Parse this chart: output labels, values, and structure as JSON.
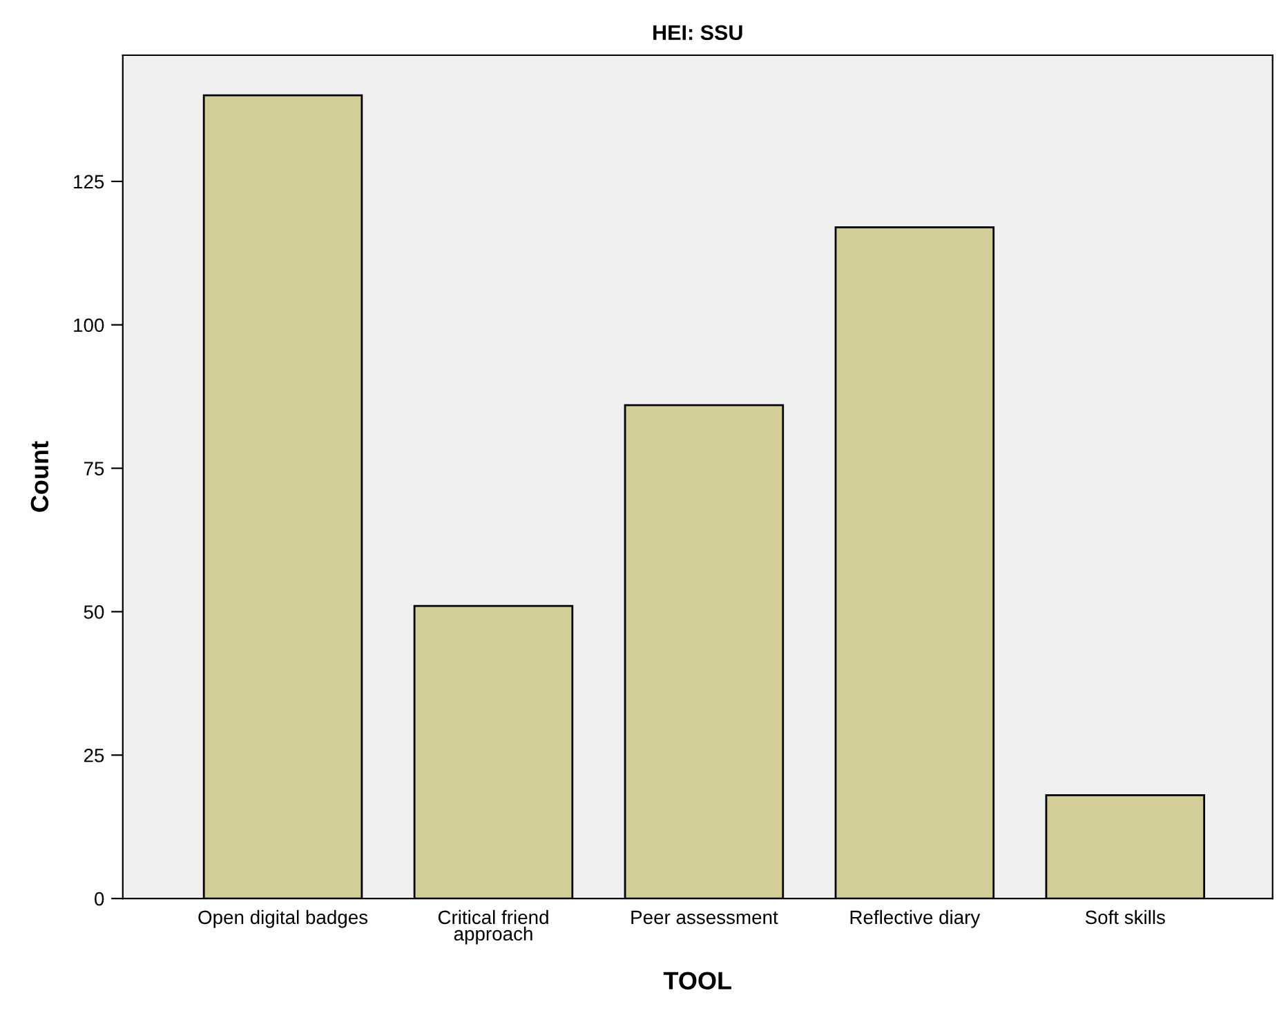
{
  "chart_data": {
    "type": "bar",
    "title": "HEI: SSU",
    "xlabel": "TOOL",
    "ylabel": "Count",
    "categories": [
      "Open digital badges",
      "Critical friend\napproach",
      "Peer assessment",
      "Reflective diary",
      "Soft skills"
    ],
    "values": [
      140,
      51,
      86,
      117,
      18
    ],
    "color": "#d3ce97",
    "ylim": [
      0,
      147
    ],
    "yticks": [
      0,
      25,
      50,
      75,
      100,
      125
    ],
    "grid": false,
    "legend": false
  }
}
